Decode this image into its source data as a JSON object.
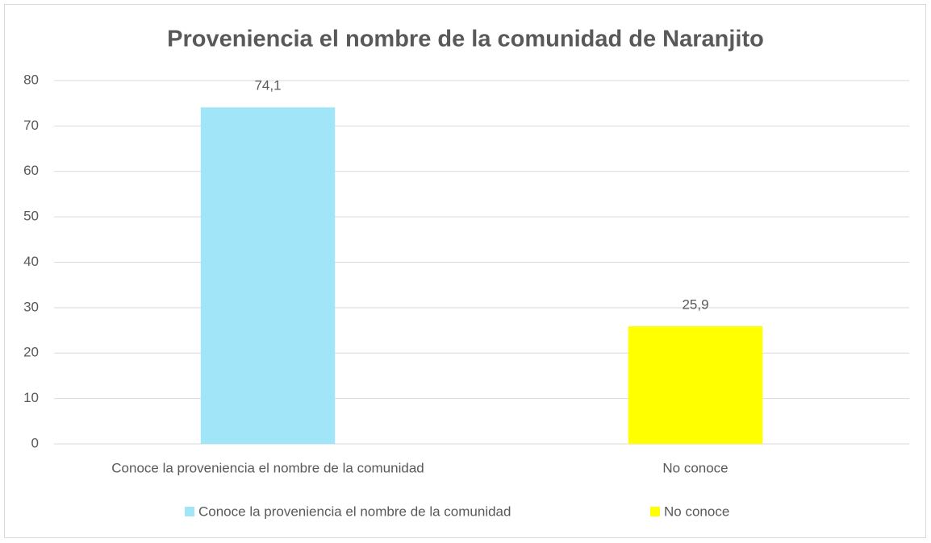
{
  "chart_data": {
    "type": "bar",
    "title": "Proveniencia el nombre de la comunidad de Naranjito",
    "categories": [
      "Conoce la proveniencia el nombre de la comunidad",
      "No conoce"
    ],
    "values": [
      74.1,
      25.9
    ],
    "value_labels": [
      "74,1",
      "25,9"
    ],
    "colors": [
      "#a0e6f8",
      "#ffff00"
    ],
    "ylim": [
      0,
      80
    ],
    "yticks": [
      0,
      10,
      20,
      30,
      40,
      50,
      60,
      70,
      80
    ],
    "grid": true,
    "legend": "bottom"
  }
}
